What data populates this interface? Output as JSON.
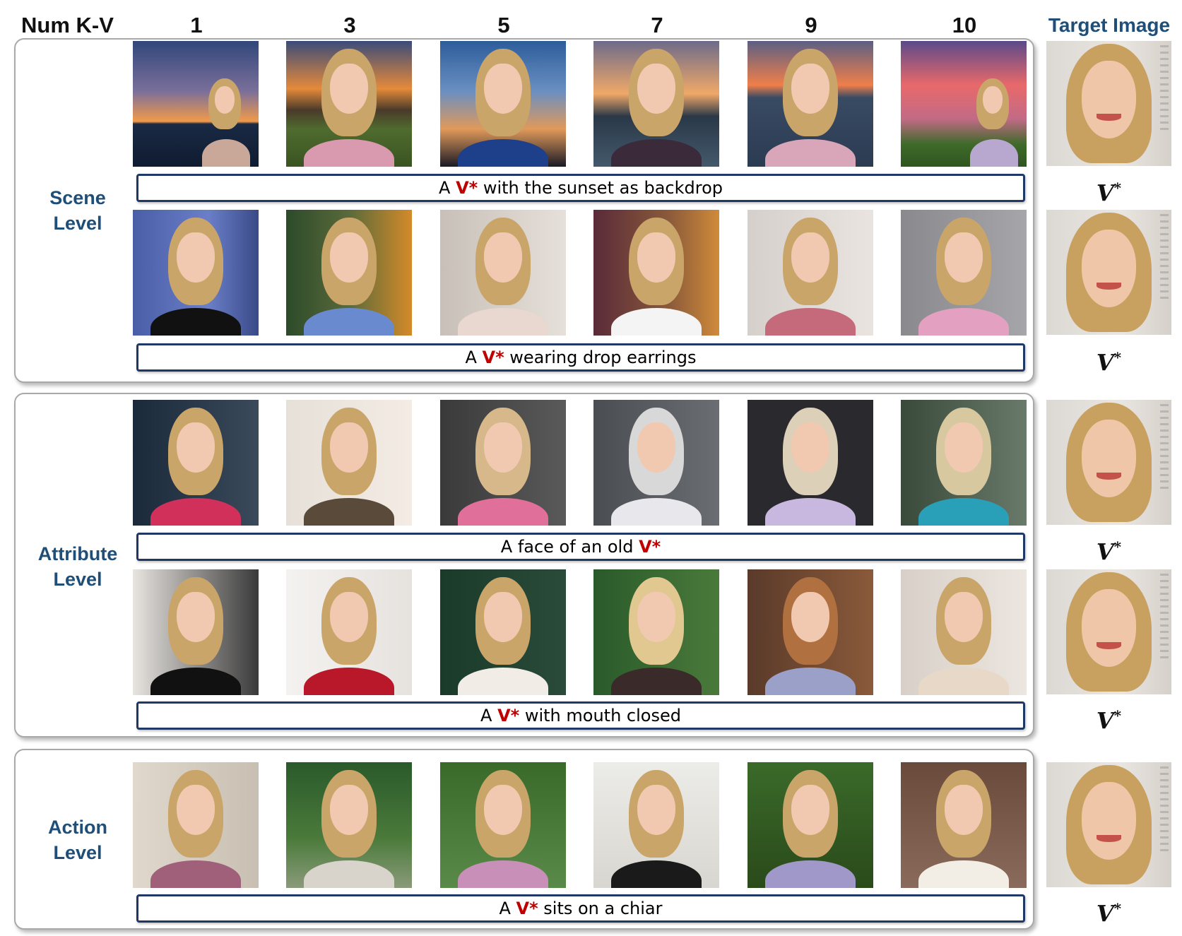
{
  "header": {
    "label": "Num K-V",
    "columns": [
      "1",
      "3",
      "5",
      "7",
      "9",
      "10"
    ],
    "target_label": "Target Image"
  },
  "levels": [
    {
      "line1": "Scene",
      "line2": "Level"
    },
    {
      "line1": "Attribute",
      "line2": "Level"
    },
    {
      "line1": "Action",
      "line2": "Level"
    }
  ],
  "prompts": [
    {
      "before": "A ",
      "token": "V*",
      "after": " with the sunset as backdrop"
    },
    {
      "before": "A ",
      "token": "V*",
      "after": " wearing drop earrings"
    },
    {
      "before": "A face of an old ",
      "token": "V*",
      "after": ""
    },
    {
      "before": "A ",
      "token": "V*",
      "after": " with mouth closed"
    },
    {
      "before": "A ",
      "token": "V*",
      "after": " sits on a chiar"
    }
  ],
  "target": {
    "symbol": "V",
    "sup": "*"
  },
  "colors": {
    "level_text": "#1f4e79",
    "token_red": "#c00000",
    "caption_border": "#1f3864"
  }
}
